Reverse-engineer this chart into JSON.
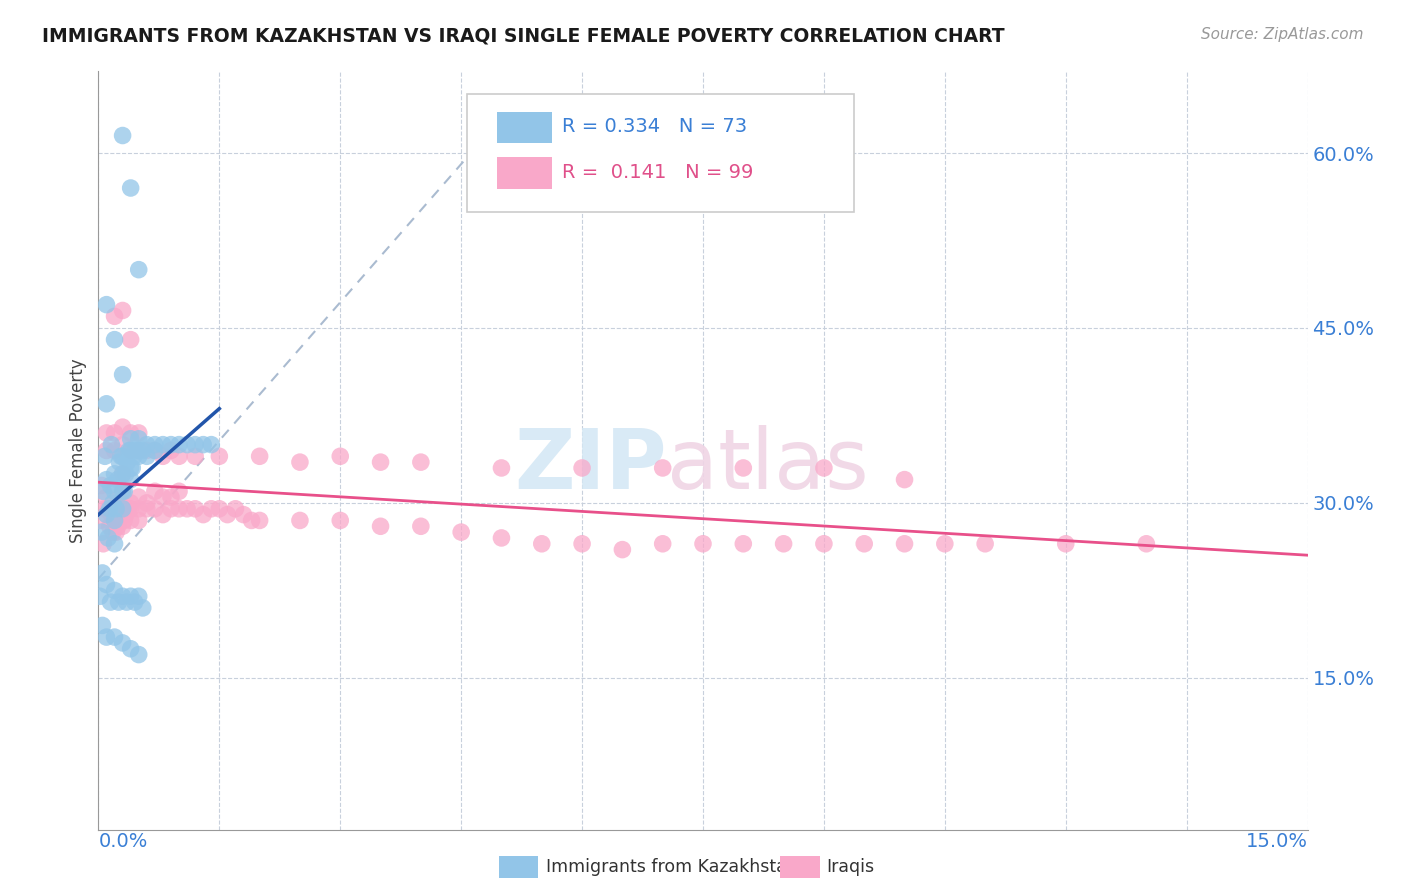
{
  "title": "IMMIGRANTS FROM KAZAKHSTAN VS IRAQI SINGLE FEMALE POVERTY CORRELATION CHART",
  "source": "Source: ZipAtlas.com",
  "ylabel": "Single Female Poverty",
  "ytick_values": [
    0.15,
    0.3,
    0.45,
    0.6
  ],
  "xlim": [
    0.0,
    0.15
  ],
  "ylim": [
    0.02,
    0.67
  ],
  "dot_color_kaz": "#92c5e8",
  "dot_color_irq": "#f9a8c9",
  "line_color_kaz": "#2255aa",
  "line_color_irq": "#e8508a",
  "line_color_dashed": "#aabbd0",
  "kaz_x": [
    0.0002,
    0.0004,
    0.0006,
    0.0008,
    0.001,
    0.001,
    0.001,
    0.0012,
    0.0014,
    0.0015,
    0.0016,
    0.0018,
    0.002,
    0.002,
    0.002,
    0.002,
    0.0022,
    0.0024,
    0.0026,
    0.0028,
    0.003,
    0.003,
    0.003,
    0.003,
    0.0032,
    0.0034,
    0.0036,
    0.0038,
    0.004,
    0.004,
    0.004,
    0.004,
    0.0042,
    0.0044,
    0.0046,
    0.005,
    0.005,
    0.005,
    0.0055,
    0.006,
    0.006,
    0.007,
    0.007,
    0.008,
    0.009,
    0.01,
    0.011,
    0.012,
    0.013,
    0.014,
    0.0005,
    0.0005,
    0.001,
    0.0015,
    0.002,
    0.0025,
    0.003,
    0.0035,
    0.004,
    0.0045,
    0.005,
    0.0055,
    0.001,
    0.002,
    0.003,
    0.004,
    0.005,
    0.003,
    0.004,
    0.005,
    0.001,
    0.002,
    0.003
  ],
  "kaz_y": [
    0.22,
    0.275,
    0.31,
    0.34,
    0.385,
    0.32,
    0.29,
    0.27,
    0.295,
    0.315,
    0.35,
    0.3,
    0.265,
    0.285,
    0.31,
    0.325,
    0.295,
    0.32,
    0.335,
    0.34,
    0.295,
    0.31,
    0.325,
    0.34,
    0.31,
    0.325,
    0.335,
    0.345,
    0.32,
    0.33,
    0.345,
    0.355,
    0.33,
    0.34,
    0.345,
    0.34,
    0.345,
    0.355,
    0.345,
    0.34,
    0.35,
    0.345,
    0.35,
    0.35,
    0.35,
    0.35,
    0.35,
    0.35,
    0.35,
    0.35,
    0.24,
    0.195,
    0.23,
    0.215,
    0.225,
    0.215,
    0.22,
    0.215,
    0.22,
    0.215,
    0.22,
    0.21,
    0.185,
    0.185,
    0.18,
    0.175,
    0.17,
    0.615,
    0.57,
    0.5,
    0.47,
    0.44,
    0.41
  ],
  "irq_x": [
    0.0002,
    0.0004,
    0.0006,
    0.0008,
    0.001,
    0.0012,
    0.0014,
    0.0016,
    0.0018,
    0.002,
    0.0022,
    0.0024,
    0.0026,
    0.0028,
    0.003,
    0.003,
    0.003,
    0.003,
    0.0032,
    0.0034,
    0.0036,
    0.0038,
    0.004,
    0.004,
    0.004,
    0.005,
    0.005,
    0.005,
    0.006,
    0.006,
    0.007,
    0.007,
    0.008,
    0.008,
    0.009,
    0.009,
    0.01,
    0.01,
    0.011,
    0.012,
    0.013,
    0.014,
    0.015,
    0.016,
    0.017,
    0.018,
    0.019,
    0.02,
    0.025,
    0.03,
    0.035,
    0.04,
    0.045,
    0.05,
    0.055,
    0.06,
    0.065,
    0.07,
    0.075,
    0.08,
    0.085,
    0.09,
    0.095,
    0.1,
    0.105,
    0.11,
    0.12,
    0.13,
    0.001,
    0.001,
    0.002,
    0.002,
    0.003,
    0.003,
    0.004,
    0.004,
    0.005,
    0.005,
    0.006,
    0.007,
    0.008,
    0.009,
    0.01,
    0.012,
    0.015,
    0.02,
    0.025,
    0.03,
    0.035,
    0.04,
    0.05,
    0.06,
    0.07,
    0.08,
    0.09,
    0.1,
    0.002,
    0.003,
    0.004
  ],
  "irq_y": [
    0.285,
    0.315,
    0.265,
    0.295,
    0.305,
    0.295,
    0.28,
    0.29,
    0.275,
    0.285,
    0.275,
    0.28,
    0.295,
    0.295,
    0.28,
    0.3,
    0.31,
    0.325,
    0.285,
    0.29,
    0.295,
    0.295,
    0.285,
    0.295,
    0.3,
    0.285,
    0.295,
    0.305,
    0.295,
    0.3,
    0.295,
    0.31,
    0.29,
    0.305,
    0.295,
    0.305,
    0.295,
    0.31,
    0.295,
    0.295,
    0.29,
    0.295,
    0.295,
    0.29,
    0.295,
    0.29,
    0.285,
    0.285,
    0.285,
    0.285,
    0.28,
    0.28,
    0.275,
    0.27,
    0.265,
    0.265,
    0.26,
    0.265,
    0.265,
    0.265,
    0.265,
    0.265,
    0.265,
    0.265,
    0.265,
    0.265,
    0.265,
    0.265,
    0.345,
    0.36,
    0.345,
    0.36,
    0.35,
    0.365,
    0.345,
    0.36,
    0.345,
    0.36,
    0.345,
    0.345,
    0.34,
    0.345,
    0.34,
    0.34,
    0.34,
    0.34,
    0.335,
    0.34,
    0.335,
    0.335,
    0.33,
    0.33,
    0.33,
    0.33,
    0.33,
    0.32,
    0.46,
    0.465,
    0.44
  ]
}
